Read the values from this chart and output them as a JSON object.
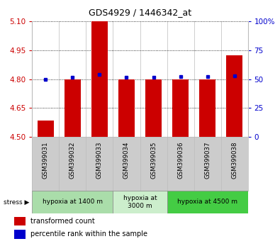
{
  "title": "GDS4929 / 1446342_at",
  "samples": [
    "GSM399031",
    "GSM399032",
    "GSM399033",
    "GSM399034",
    "GSM399035",
    "GSM399036",
    "GSM399037",
    "GSM399038"
  ],
  "red_values": [
    4.585,
    4.8,
    5.1,
    4.8,
    4.8,
    4.8,
    4.8,
    4.925
  ],
  "blue_values": [
    4.8,
    4.81,
    4.825,
    4.81,
    4.811,
    4.814,
    4.813,
    4.815
  ],
  "red_base": 4.5,
  "ylim_left": [
    4.5,
    5.1
  ],
  "yticks_left": [
    4.5,
    4.65,
    4.8,
    4.95,
    5.1
  ],
  "yticks_right": [
    0,
    25,
    50,
    75,
    100
  ],
  "ylim_right": [
    0,
    100
  ],
  "bar_width": 0.6,
  "bar_color": "#cc0000",
  "dot_color": "#0000cc",
  "groups": [
    {
      "label": "hypoxia at 1400 m",
      "start": 0,
      "end": 3,
      "color": "#aaddaa"
    },
    {
      "label": "hypoxia at\n3000 m",
      "start": 3,
      "end": 5,
      "color": "#cceecc"
    },
    {
      "label": "hypoxia at 4500 m",
      "start": 5,
      "end": 8,
      "color": "#44cc44"
    }
  ],
  "tick_color_left": "#cc0000",
  "tick_color_right": "#0000cc",
  "label_area_color": "#cccccc",
  "grid_color": "#000000",
  "legend_red": "transformed count",
  "legend_blue": "percentile rank within the sample"
}
